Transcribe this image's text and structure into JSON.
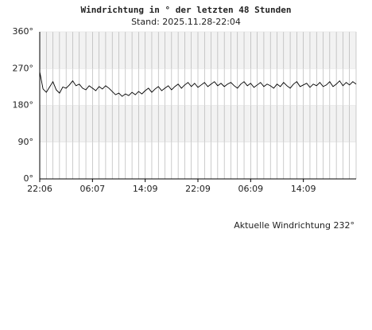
{
  "chart_data": {
    "type": "line",
    "title": "Windrichtung in ° der letzten 48 Stunden",
    "subtitle": "Stand: 2025.11.28-22:04",
    "annotation": "Aktuelle Windrichtung 232°",
    "xlim": [
      0,
      48
    ],
    "xticks": [
      {
        "value": 0,
        "label": "22:06"
      },
      {
        "value": 8,
        "label": "06:07"
      },
      {
        "value": 16,
        "label": "14:09"
      },
      {
        "value": 24,
        "label": "22:09"
      },
      {
        "value": 32,
        "label": "06:09"
      },
      {
        "value": 40,
        "label": "14:09"
      }
    ],
    "xminorticks": [
      0,
      1,
      2,
      3,
      4,
      5,
      6,
      7,
      8,
      9,
      10,
      11,
      12,
      13,
      14,
      15,
      16,
      17,
      18,
      19,
      20,
      21,
      22,
      23,
      24,
      25,
      26,
      27,
      28,
      29,
      30,
      31,
      32,
      33,
      34,
      35,
      36,
      37,
      38,
      39,
      40,
      41,
      42,
      43,
      44,
      45,
      46,
      47,
      48
    ],
    "ylim": [
      0,
      360
    ],
    "yticks": [
      {
        "value": 0,
        "label": "0°"
      },
      {
        "value": 90,
        "label": "90°"
      },
      {
        "value": 180,
        "label": "180°"
      },
      {
        "value": 270,
        "label": "270°"
      },
      {
        "value": 360,
        "label": "360°"
      }
    ],
    "bands": [
      {
        "from": 90,
        "to": 180,
        "color": "#f2f2f2"
      },
      {
        "from": 270,
        "to": 360,
        "color": "#f2f2f2"
      }
    ],
    "grid": true,
    "x": [
      0,
      0.5,
      1,
      1.5,
      2,
      2.5,
      3,
      3.5,
      4,
      4.5,
      5,
      5.5,
      6,
      6.5,
      7,
      7.5,
      8,
      8.5,
      9,
      9.5,
      10,
      10.5,
      11,
      11.5,
      12,
      12.5,
      13,
      13.5,
      14,
      14.5,
      15,
      15.5,
      16,
      16.5,
      17,
      17.5,
      18,
      18.5,
      19,
      19.5,
      20,
      20.5,
      21,
      21.5,
      22,
      22.5,
      23,
      23.5,
      24,
      24.5,
      25,
      25.5,
      26,
      26.5,
      27,
      27.5,
      28,
      28.5,
      29,
      29.5,
      30,
      30.5,
      31,
      31.5,
      32,
      32.5,
      33,
      33.5,
      34,
      34.5,
      35,
      35.5,
      36,
      36.5,
      37,
      37.5,
      38,
      38.5,
      39,
      39.5,
      40,
      40.5,
      41,
      41.5,
      42,
      42.5,
      43,
      43.5,
      44,
      44.5,
      45,
      45.5,
      46,
      46.5,
      47,
      47.5,
      48
    ],
    "series": [
      {
        "color": "#000000",
        "values": [
          262,
          220,
          212,
          225,
          238,
          218,
          210,
          225,
          222,
          230,
          240,
          228,
          232,
          222,
          218,
          228,
          222,
          216,
          226,
          220,
          228,
          222,
          214,
          206,
          210,
          202,
          208,
          204,
          212,
          206,
          214,
          208,
          216,
          222,
          212,
          220,
          226,
          216,
          222,
          228,
          218,
          226,
          232,
          222,
          230,
          236,
          226,
          234,
          224,
          230,
          236,
          226,
          232,
          238,
          228,
          234,
          226,
          232,
          236,
          228,
          222,
          232,
          238,
          228,
          234,
          224,
          230,
          236,
          226,
          232,
          228,
          222,
          232,
          226,
          236,
          228,
          222,
          232,
          238,
          226,
          230,
          234,
          224,
          232,
          228,
          236,
          226,
          230,
          238,
          226,
          232,
          240,
          228,
          236,
          230,
          238,
          232
        ]
      }
    ]
  }
}
